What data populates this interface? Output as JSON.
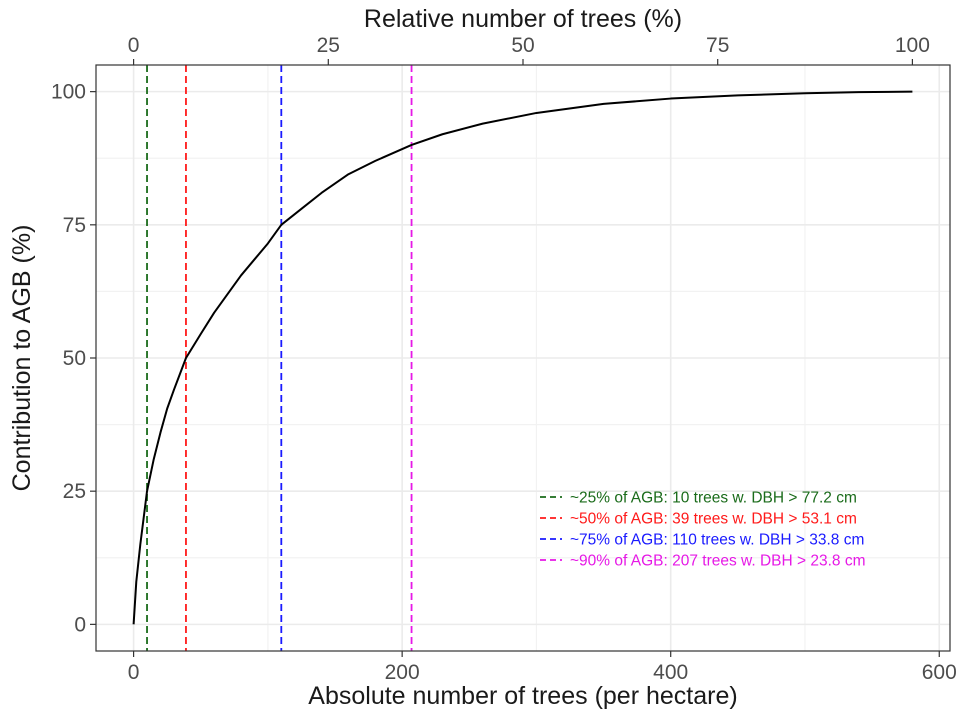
{
  "chart_data": {
    "type": "line",
    "title": "",
    "xlabel": "Absolute number of trees (per hectare)",
    "x2label": "Relative number of trees (%)",
    "ylabel": "Contribution to AGB (%)",
    "xlim": [
      -28,
      608
    ],
    "ylim": [
      -5,
      105
    ],
    "x_ticks": [
      0,
      200,
      400,
      600
    ],
    "x_tick_labels": [
      "0",
      "200",
      "400",
      "600"
    ],
    "x2_ticks": [
      0,
      25,
      50,
      75,
      100
    ],
    "x2_tick_labels": [
      "0",
      "25",
      "50",
      "75",
      "100"
    ],
    "x2_max_abs": 580,
    "y_ticks": [
      0,
      25,
      50,
      75,
      100
    ],
    "y_tick_labels": [
      "0",
      "25",
      "50",
      "75",
      "100"
    ],
    "grid": true,
    "legend_position": "bottom-right",
    "series": [
      {
        "color": "#000000",
        "style": "solid",
        "x": [
          0,
          2,
          5,
          10,
          15,
          20,
          25,
          30,
          39,
          50,
          60,
          70,
          80,
          90,
          100,
          110,
          125,
          140,
          160,
          180,
          207,
          230,
          260,
          300,
          350,
          400,
          450,
          500,
          540,
          580
        ],
        "y": [
          0,
          8,
          15,
          25,
          31,
          36,
          40.5,
          44,
          50,
          54.5,
          58.5,
          62,
          65.5,
          68.5,
          71.5,
          75,
          78,
          81,
          84.5,
          87,
          90,
          92,
          94,
          96,
          97.7,
          98.7,
          99.3,
          99.7,
          99.9,
          100
        ]
      }
    ],
    "reference_lines": [
      {
        "x": 10,
        "color": "#1a6b1a",
        "label": "~25% of AGB: 10 trees w. DBH > 77.2 cm"
      },
      {
        "x": 39,
        "color": "#ff1a1a",
        "label": "~50% of AGB: 39 trees w. DBH > 53.1 cm"
      },
      {
        "x": 110,
        "color": "#1a1aff",
        "label": "~75% of AGB: 110 trees w. DBH > 33.8 cm"
      },
      {
        "x": 207,
        "color": "#e619e6",
        "label": "~90% of AGB: 207 trees w. DBH > 23.8 cm"
      }
    ]
  }
}
